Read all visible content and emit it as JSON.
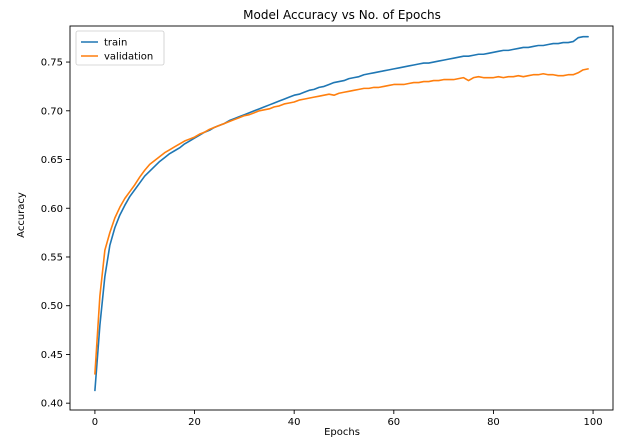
{
  "chart_data": {
    "type": "line",
    "title": "Model Accuracy vs No. of Epochs",
    "xlabel": "Epochs",
    "ylabel": "Accuracy",
    "xlim": [
      -5,
      104
    ],
    "ylim": [
      0.393,
      0.787
    ],
    "xticks": [
      0,
      20,
      40,
      60,
      80,
      100
    ],
    "xtick_labels": [
      "0",
      "20",
      "40",
      "60",
      "80",
      "100"
    ],
    "yticks": [
      0.4,
      0.45,
      0.5,
      0.55,
      0.6,
      0.65,
      0.7,
      0.75
    ],
    "ytick_labels": [
      "0.40",
      "0.45",
      "0.50",
      "0.55",
      "0.60",
      "0.65",
      "0.70",
      "0.75"
    ],
    "grid": false,
    "legend": "top-left",
    "series": [
      {
        "name": "train",
        "color": "#1f77b4",
        "x": [
          0,
          1,
          2,
          3,
          4,
          5,
          6,
          7,
          8,
          9,
          10,
          11,
          12,
          13,
          14,
          15,
          16,
          17,
          18,
          19,
          20,
          21,
          22,
          23,
          24,
          25,
          26,
          27,
          28,
          29,
          30,
          31,
          32,
          33,
          34,
          35,
          36,
          37,
          38,
          39,
          40,
          41,
          42,
          43,
          44,
          45,
          46,
          47,
          48,
          49,
          50,
          51,
          52,
          53,
          54,
          55,
          56,
          57,
          58,
          59,
          60,
          61,
          62,
          63,
          64,
          65,
          66,
          67,
          68,
          69,
          70,
          71,
          72,
          73,
          74,
          75,
          76,
          77,
          78,
          79,
          80,
          81,
          82,
          83,
          84,
          85,
          86,
          87,
          88,
          89,
          90,
          91,
          92,
          93,
          94,
          95,
          96,
          97,
          98,
          99
        ],
        "y": [
          0.413,
          0.48,
          0.53,
          0.562,
          0.58,
          0.593,
          0.603,
          0.612,
          0.619,
          0.626,
          0.633,
          0.638,
          0.643,
          0.648,
          0.652,
          0.656,
          0.659,
          0.662,
          0.666,
          0.669,
          0.672,
          0.675,
          0.678,
          0.68,
          0.683,
          0.685,
          0.687,
          0.69,
          0.692,
          0.694,
          0.696,
          0.698,
          0.7,
          0.702,
          0.704,
          0.706,
          0.708,
          0.71,
          0.712,
          0.714,
          0.716,
          0.717,
          0.719,
          0.721,
          0.722,
          0.724,
          0.725,
          0.727,
          0.729,
          0.73,
          0.731,
          0.733,
          0.734,
          0.735,
          0.737,
          0.738,
          0.739,
          0.74,
          0.741,
          0.742,
          0.743,
          0.744,
          0.745,
          0.746,
          0.747,
          0.748,
          0.749,
          0.749,
          0.75,
          0.751,
          0.752,
          0.753,
          0.754,
          0.755,
          0.756,
          0.756,
          0.757,
          0.758,
          0.758,
          0.759,
          0.76,
          0.761,
          0.762,
          0.762,
          0.763,
          0.764,
          0.765,
          0.765,
          0.766,
          0.767,
          0.767,
          0.768,
          0.769,
          0.769,
          0.77,
          0.77,
          0.771,
          0.775,
          0.776,
          0.776
        ]
      },
      {
        "name": "validation",
        "color": "#ff7f0e",
        "x": [
          0,
          1,
          2,
          3,
          4,
          5,
          6,
          7,
          8,
          9,
          10,
          11,
          12,
          13,
          14,
          15,
          16,
          17,
          18,
          19,
          20,
          21,
          22,
          23,
          24,
          25,
          26,
          27,
          28,
          29,
          30,
          31,
          32,
          33,
          34,
          35,
          36,
          37,
          38,
          39,
          40,
          41,
          42,
          43,
          44,
          45,
          46,
          47,
          48,
          49,
          50,
          51,
          52,
          53,
          54,
          55,
          56,
          57,
          58,
          59,
          60,
          61,
          62,
          63,
          64,
          65,
          66,
          67,
          68,
          69,
          70,
          71,
          72,
          73,
          74,
          75,
          76,
          77,
          78,
          79,
          80,
          81,
          82,
          83,
          84,
          85,
          86,
          87,
          88,
          89,
          90,
          91,
          92,
          93,
          94,
          95,
          96,
          97,
          98,
          99
        ],
        "y": [
          0.43,
          0.51,
          0.557,
          0.575,
          0.59,
          0.601,
          0.61,
          0.617,
          0.624,
          0.632,
          0.639,
          0.645,
          0.649,
          0.653,
          0.657,
          0.66,
          0.663,
          0.666,
          0.669,
          0.671,
          0.673,
          0.676,
          0.678,
          0.681,
          0.683,
          0.685,
          0.687,
          0.689,
          0.691,
          0.693,
          0.695,
          0.696,
          0.698,
          0.7,
          0.701,
          0.702,
          0.704,
          0.705,
          0.707,
          0.708,
          0.709,
          0.711,
          0.712,
          0.713,
          0.714,
          0.715,
          0.716,
          0.717,
          0.716,
          0.718,
          0.719,
          0.72,
          0.721,
          0.722,
          0.723,
          0.723,
          0.724,
          0.724,
          0.725,
          0.726,
          0.727,
          0.727,
          0.727,
          0.728,
          0.729,
          0.729,
          0.73,
          0.73,
          0.731,
          0.731,
          0.732,
          0.732,
          0.732,
          0.733,
          0.734,
          0.731,
          0.734,
          0.735,
          0.734,
          0.734,
          0.734,
          0.735,
          0.734,
          0.735,
          0.735,
          0.736,
          0.735,
          0.736,
          0.737,
          0.737,
          0.738,
          0.737,
          0.737,
          0.736,
          0.736,
          0.737,
          0.737,
          0.739,
          0.742,
          0.743
        ]
      }
    ]
  }
}
